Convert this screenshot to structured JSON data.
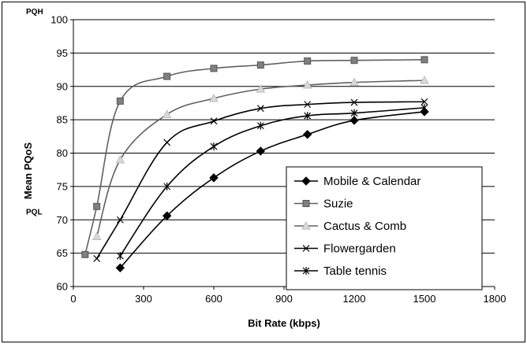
{
  "chart_data": {
    "type": "line",
    "xlabel": "Bit Rate (kbps)",
    "ylabel": "Mean PQoS",
    "xlim": [
      0,
      1800
    ],
    "ylim": [
      60,
      100
    ],
    "xticks": [
      0,
      300,
      600,
      900,
      1200,
      1500,
      1800
    ],
    "yticks": [
      60,
      65,
      70,
      75,
      80,
      85,
      90,
      95,
      100
    ],
    "y_markers": [
      {
        "label": "PQH",
        "value": 100
      },
      {
        "label": "PQL",
        "value": 70
      }
    ],
    "grid": "horizontal",
    "legend_position": "bottom-right",
    "series": [
      {
        "name": "Mobile & Calendar",
        "marker": "diamond",
        "color": "#000000",
        "x": [
          200,
          400,
          600,
          800,
          1000,
          1200,
          1500
        ],
        "y": [
          62.8,
          70.6,
          76.3,
          80.3,
          82.8,
          84.9,
          86.2
        ]
      },
      {
        "name": "Suzie",
        "marker": "square",
        "color": "#808080",
        "x": [
          50,
          100,
          200,
          400,
          600,
          800,
          1000,
          1200,
          1500
        ],
        "y": [
          64.8,
          72.0,
          87.8,
          91.5,
          92.7,
          93.2,
          93.8,
          93.9,
          94.0
        ]
      },
      {
        "name": "Cactus & Comb",
        "marker": "triangle",
        "color": "#808080",
        "x": [
          100,
          200,
          400,
          600,
          800,
          1000,
          1200,
          1500
        ],
        "y": [
          67.5,
          79.0,
          85.8,
          88.2,
          89.6,
          90.2,
          90.6,
          90.9
        ]
      },
      {
        "name": "Flowergarden",
        "marker": "x",
        "color": "#000000",
        "x": [
          100,
          200,
          400,
          600,
          800,
          1000,
          1200,
          1500
        ],
        "y": [
          64.2,
          70.0,
          81.6,
          84.8,
          86.7,
          87.3,
          87.6,
          87.7
        ]
      },
      {
        "name": "Table tennis",
        "marker": "asterisk",
        "color": "#000000",
        "x": [
          200,
          400,
          600,
          800,
          1000,
          1200,
          1500
        ],
        "y": [
          64.6,
          75.0,
          81.0,
          84.1,
          85.6,
          86.0,
          86.8
        ]
      }
    ]
  }
}
